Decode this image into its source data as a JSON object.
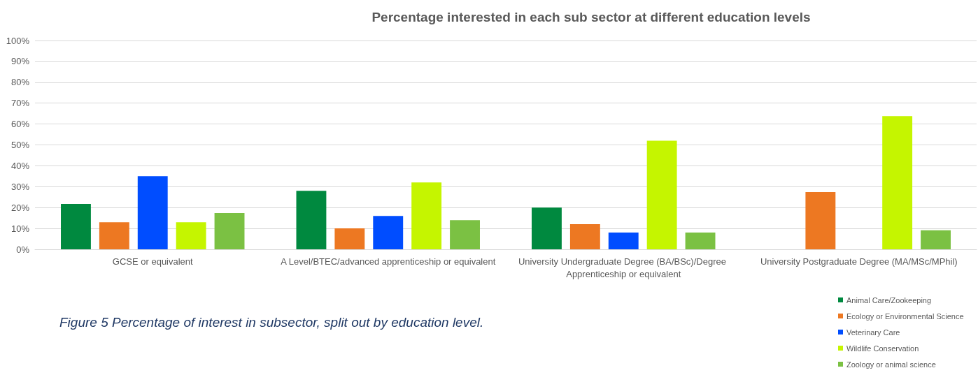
{
  "chart_data": {
    "type": "bar",
    "title": "Percentage interested in each sub sector at different education levels",
    "categories": [
      "GCSE or equivalent",
      "A Level/BTEC/advanced apprenticeship or equivalent",
      "University Undergraduate Degree (BA/BSc)/Degree Apprenticeship or equivalent",
      "University Postgraduate Degree (MA/MSc/MPhil)"
    ],
    "series": [
      {
        "name": "Animal Care/Zookeeping",
        "color": "#00893f",
        "values": [
          21.7,
          28,
          20,
          0
        ]
      },
      {
        "name": "Ecology or Environmental Science",
        "color": "#ed7822",
        "values": [
          13,
          10,
          12,
          27.4
        ]
      },
      {
        "name": "Veterinary Care",
        "color": "#004dff",
        "values": [
          35,
          16,
          8,
          0
        ]
      },
      {
        "name": "Wildlife Conservation",
        "color": "#c5f500",
        "values": [
          13,
          32,
          52,
          63.8
        ]
      },
      {
        "name": "Zoology or animal science",
        "color": "#7bc143",
        "values": [
          17.4,
          14,
          8,
          9.1
        ]
      }
    ],
    "ylim": [
      0,
      100
    ],
    "yticks": [
      {
        "value": 0,
        "label": "0%"
      },
      {
        "value": 10,
        "label": "10%"
      },
      {
        "value": 20,
        "label": "20%"
      },
      {
        "value": 30,
        "label": "30%"
      },
      {
        "value": 40,
        "label": "40%"
      },
      {
        "value": 50,
        "label": "50%"
      },
      {
        "value": 60,
        "label": "60%"
      },
      {
        "value": 70,
        "label": "70%"
      },
      {
        "value": 80,
        "label": "80%"
      },
      {
        "value": 90,
        "label": "90%"
      },
      {
        "value": 100,
        "label": "100%"
      }
    ],
    "grid": "y",
    "legend": "bottom right",
    "annotations": [
      "Figure 5 Percentage of interest in subsector, split out by education level."
    ]
  }
}
